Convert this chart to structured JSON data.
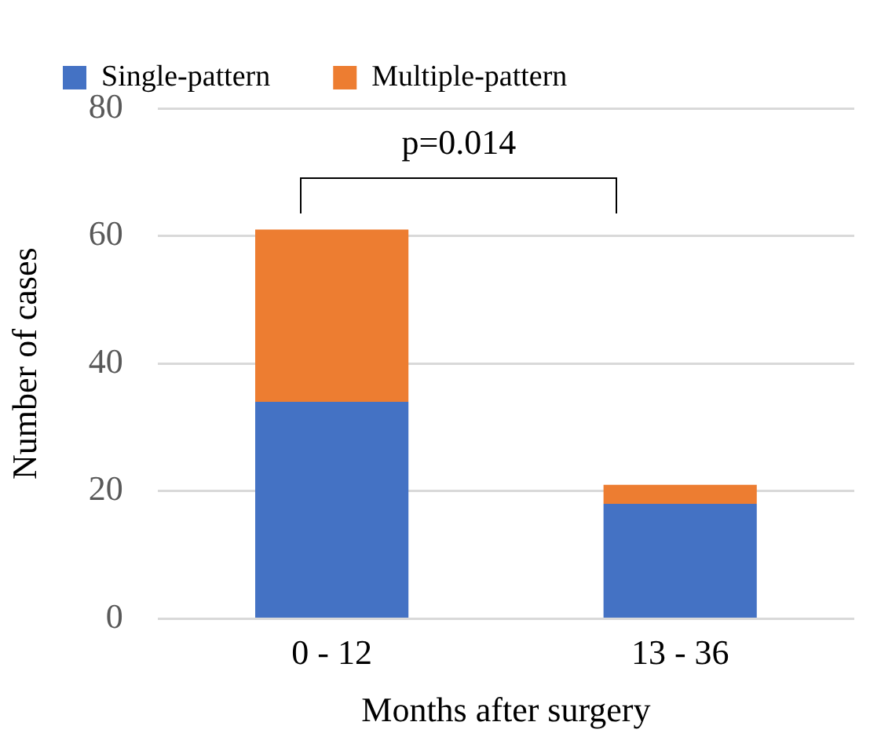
{
  "chart_data": {
    "type": "bar",
    "stacked": true,
    "xlabel": "Months after surgery",
    "ylabel": "Number of cases",
    "categories": [
      "0 - 12",
      "13 - 36"
    ],
    "series": [
      {
        "name": "Single-pattern",
        "color": "#4472c4",
        "values": [
          34,
          18
        ]
      },
      {
        "name": "Multiple-pattern",
        "color": "#ed7d31",
        "values": [
          27,
          3
        ]
      }
    ],
    "ylim": [
      0,
      80
    ],
    "yticks": [
      0,
      20,
      40,
      60,
      80
    ],
    "grid": "y",
    "legend": "top left",
    "annotations": [
      "p=0.014"
    ]
  }
}
